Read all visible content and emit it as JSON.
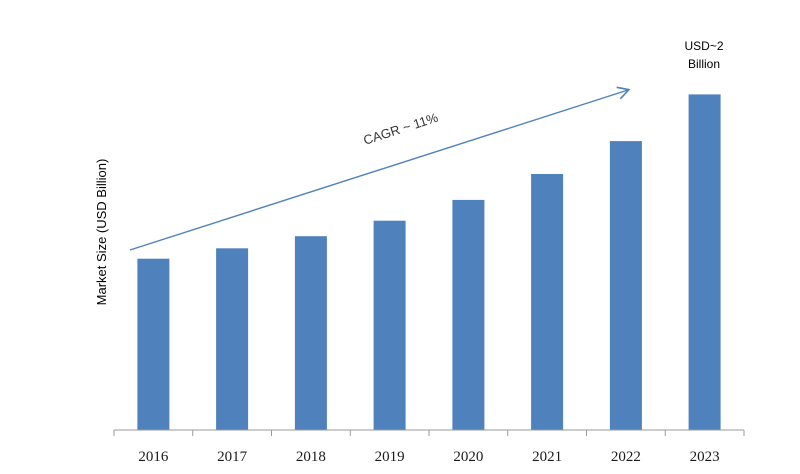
{
  "chart_data": {
    "type": "bar",
    "categories": [
      "2016",
      "2017",
      "2018",
      "2019",
      "2020",
      "2021",
      "2022",
      "2023"
    ],
    "values": [
      0.99,
      1.05,
      1.12,
      1.21,
      1.33,
      1.48,
      1.67,
      1.94
    ],
    "ylabel": "Market Size (USD Billion)",
    "xlabel": "",
    "title": "",
    "ylim": [
      0,
      2.0
    ],
    "grid": false,
    "bar_color": "#4F81BD",
    "annotations": {
      "cagr": "CAGR ~ 11%",
      "last_bar_line1": "USD~2",
      "last_bar_line2": "Billion"
    },
    "arrow_color": "#4F81BD"
  }
}
